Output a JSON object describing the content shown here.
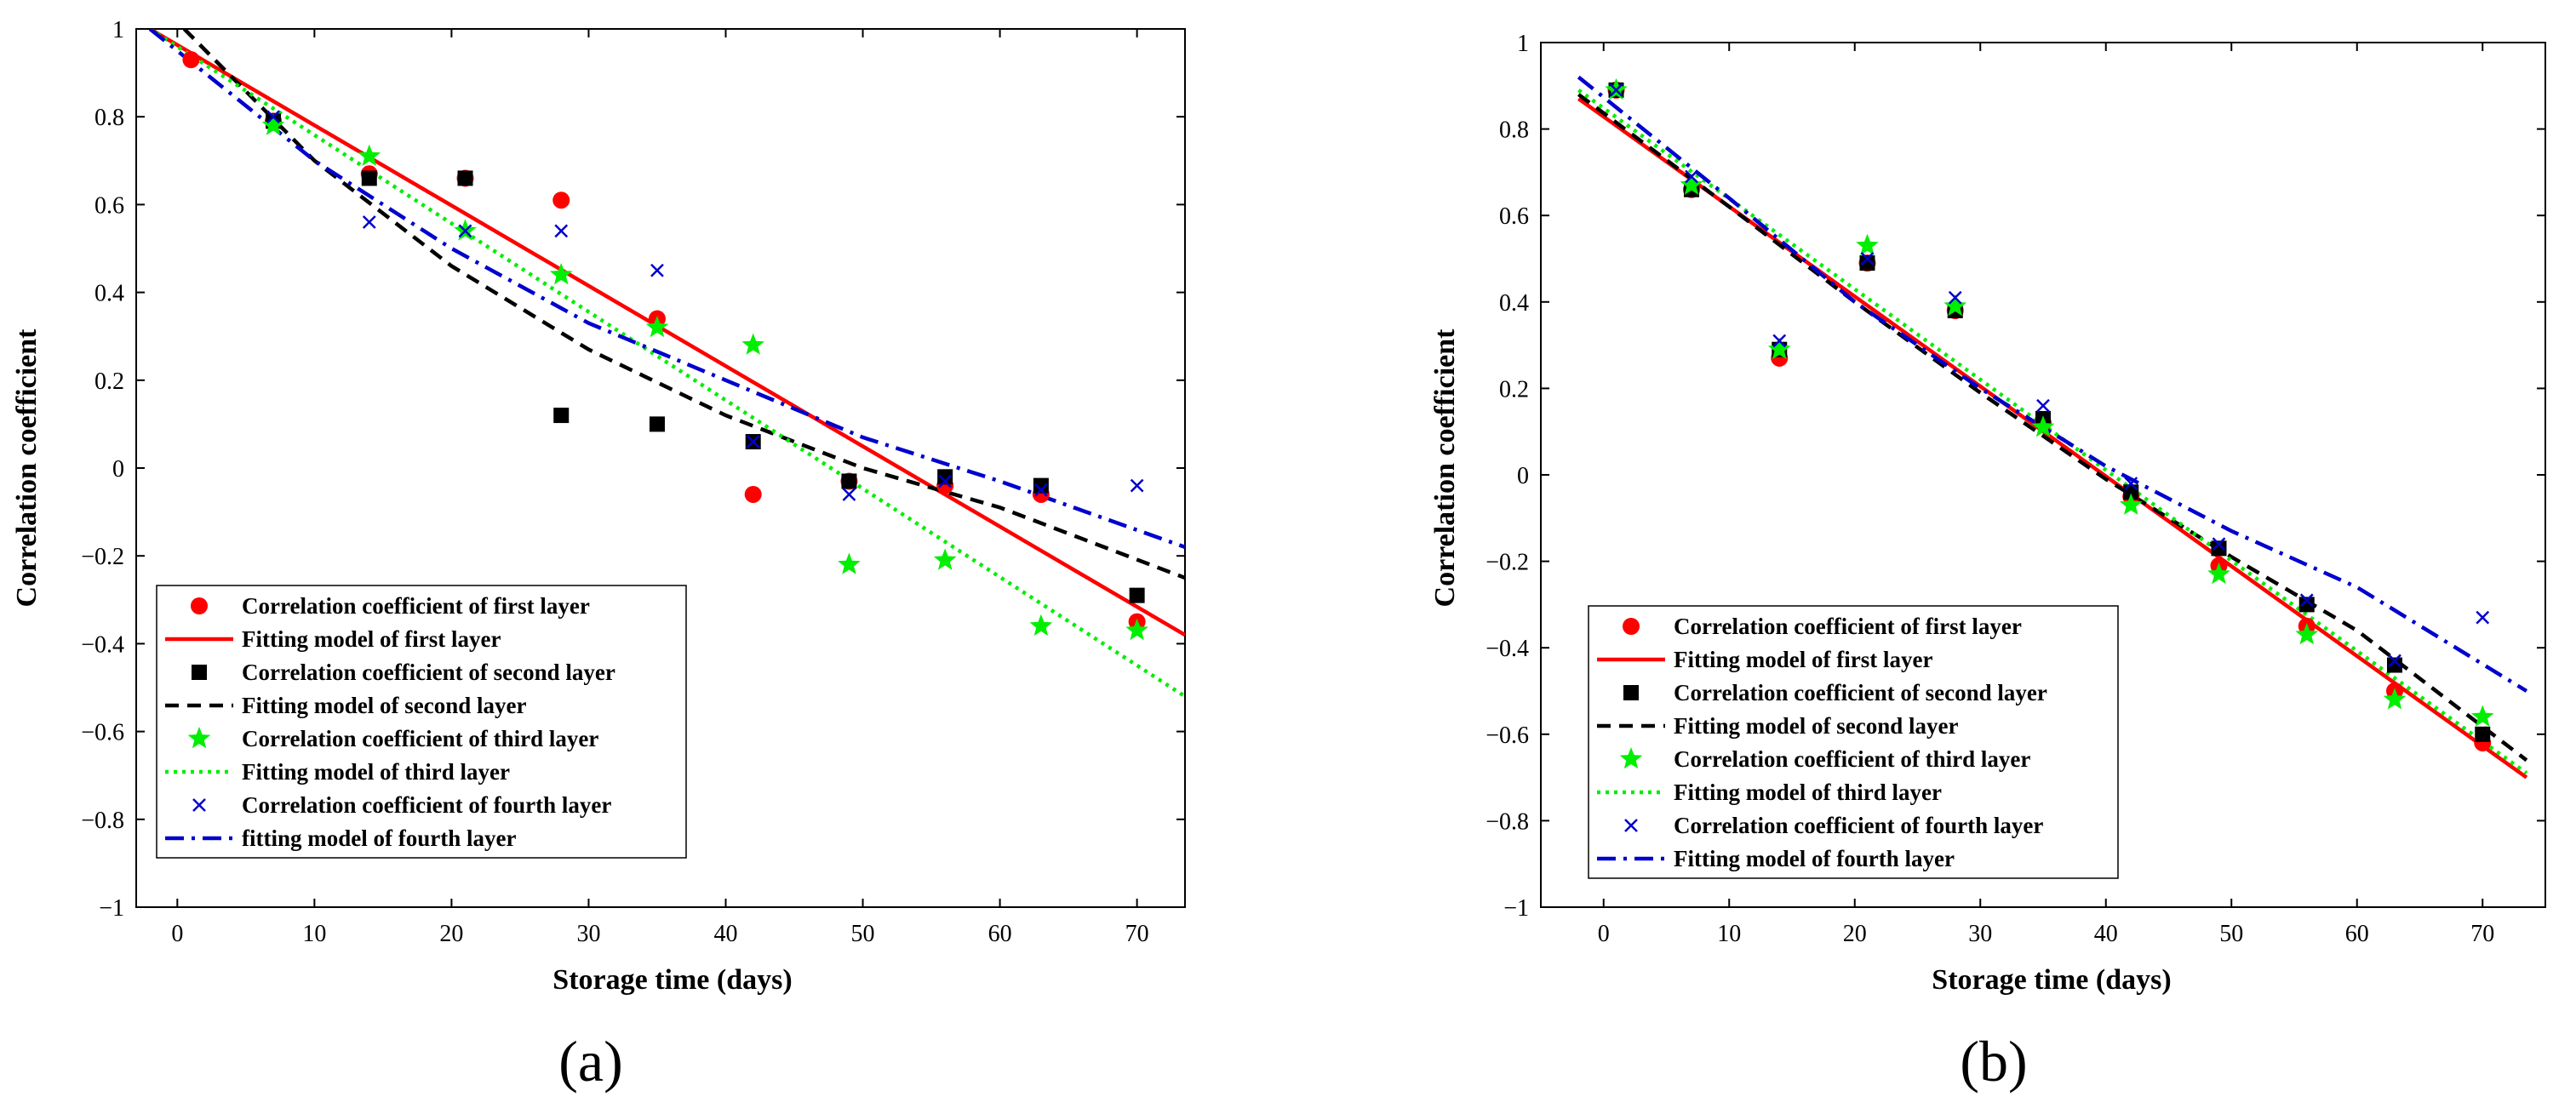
{
  "chart_data": [
    {
      "type": "scatter",
      "panel_label": "(a)",
      "xlabel": "Storage time (days)",
      "ylabel": "Correlation coefficient",
      "xlim": [
        -3,
        73.5
      ],
      "ylim": [
        -1,
        1
      ],
      "xticks": [
        "0",
        "10",
        "20",
        "30",
        "40",
        "50",
        "60",
        "70"
      ],
      "yticks": [
        "1",
        "0.8",
        "0.6",
        "0.4",
        "0.2",
        "0",
        "−0.2",
        "−0.4",
        "−0.6",
        "−0.8",
        "−1"
      ],
      "legend_position": "bottom-left",
      "series": [
        {
          "name": "Correlation coefficient of first layer",
          "marker": "circle",
          "color": "#ff0000",
          "x": [
            1,
            7,
            14,
            21,
            28,
            35,
            42,
            49,
            56,
            63,
            70
          ],
          "y": [
            0.93,
            0.79,
            0.67,
            0.66,
            0.61,
            0.34,
            -0.06,
            -0.03,
            -0.04,
            -0.06,
            -0.35
          ]
        },
        {
          "name": "Fitting model of first layer",
          "line": "solid",
          "color": "#ff0000",
          "x": [
            -2,
            73.5
          ],
          "y": [
            1.0,
            -0.38
          ]
        },
        {
          "name": "Correlation coefficient of second layer",
          "marker": "square",
          "color": "#000000",
          "x": [
            7,
            14,
            21,
            28,
            35,
            42,
            49,
            56,
            63,
            70
          ],
          "y": [
            0.79,
            0.66,
            0.66,
            0.12,
            0.1,
            0.06,
            -0.03,
            -0.02,
            -0.04,
            -0.29
          ]
        },
        {
          "name": "Fitting model of second layer",
          "line": "dashed",
          "color": "#000000",
          "x": [
            0.5,
            10,
            20,
            30,
            40,
            50,
            60,
            73.5
          ],
          "y": [
            1.0,
            0.7,
            0.46,
            0.27,
            0.12,
            0.0,
            -0.09,
            -0.25
          ]
        },
        {
          "name": "Correlation coefficient of third layer",
          "marker": "star",
          "color": "#00ee00",
          "x": [
            7,
            14,
            21,
            28,
            35,
            42,
            49,
            56,
            63,
            70
          ],
          "y": [
            0.78,
            0.71,
            0.54,
            0.44,
            0.32,
            0.28,
            -0.22,
            -0.21,
            -0.36,
            -0.37
          ]
        },
        {
          "name": "Fitting model of third layer",
          "line": "dotted",
          "color": "#00ee00",
          "x": [
            -2,
            73.5
          ],
          "y": [
            1.0,
            -0.52
          ]
        },
        {
          "name": "Correlation coefficient of fourth layer",
          "marker": "x",
          "color": "#0000cc",
          "x": [
            7,
            14,
            21,
            28,
            35,
            42,
            49,
            56,
            63,
            70
          ],
          "y": [
            0.8,
            0.56,
            0.54,
            0.54,
            0.45,
            0.06,
            -0.06,
            -0.03,
            -0.05,
            -0.04
          ]
        },
        {
          "name": "fitting model of fourth layer",
          "line": "dashdot",
          "color": "#0000cc",
          "x": [
            -2,
            10,
            20,
            30,
            40,
            50,
            60,
            73.5
          ],
          "y": [
            1.0,
            0.7,
            0.5,
            0.33,
            0.2,
            0.07,
            -0.03,
            -0.18
          ]
        }
      ]
    },
    {
      "type": "scatter",
      "panel_label": "(b)",
      "xlabel": "Storage time (days)",
      "ylabel": "Correlation coefficient",
      "xlim": [
        -5,
        75
      ],
      "ylim": [
        -1,
        1
      ],
      "xticks": [
        "0",
        "10",
        "20",
        "30",
        "40",
        "50",
        "60",
        "70"
      ],
      "yticks": [
        "1",
        "0.8",
        "0.6",
        "0.4",
        "0.2",
        "0",
        "−0.2",
        "−0.4",
        "−0.6",
        "−0.8",
        "−1"
      ],
      "legend_position": "bottom-left",
      "series": [
        {
          "name": "Correlation coefficient of first layer",
          "marker": "circle",
          "color": "#ff0000",
          "x": [
            1,
            7,
            14,
            21,
            28,
            35,
            42,
            49,
            56,
            63,
            70
          ],
          "y": [
            0.89,
            0.66,
            0.27,
            0.49,
            0.38,
            0.12,
            -0.05,
            -0.21,
            -0.35,
            -0.5,
            -0.62
          ]
        },
        {
          "name": "Fitting model of first layer",
          "line": "solid",
          "color": "#ff0000",
          "x": [
            -2,
            73.5
          ],
          "y": [
            0.87,
            -0.7
          ]
        },
        {
          "name": "Correlation coefficient of second layer",
          "marker": "square",
          "color": "#000000",
          "x": [
            1,
            7,
            14,
            21,
            28,
            35,
            42,
            49,
            56,
            63,
            70
          ],
          "y": [
            0.89,
            0.66,
            0.29,
            0.49,
            0.38,
            0.13,
            -0.04,
            -0.17,
            -0.3,
            -0.44,
            -0.6
          ]
        },
        {
          "name": "Fitting model of second layer",
          "line": "dashed",
          "color": "#000000",
          "x": [
            -2,
            10,
            20,
            30,
            40,
            50,
            60,
            73.5
          ],
          "y": [
            0.88,
            0.62,
            0.4,
            0.19,
            -0.01,
            -0.19,
            -0.36,
            -0.66
          ]
        },
        {
          "name": "Correlation coefficient of third layer",
          "marker": "star",
          "color": "#00ee00",
          "x": [
            1,
            7,
            14,
            21,
            28,
            35,
            42,
            49,
            56,
            63,
            70
          ],
          "y": [
            0.89,
            0.67,
            0.29,
            0.53,
            0.39,
            0.11,
            -0.07,
            -0.23,
            -0.37,
            -0.52,
            -0.56
          ]
        },
        {
          "name": "Fitting model of third layer",
          "line": "dotted",
          "color": "#00ee00",
          "x": [
            -2,
            73.5
          ],
          "y": [
            0.89,
            -0.69
          ]
        },
        {
          "name": "Correlation coefficient of fourth layer",
          "marker": "x",
          "color": "#0000cc",
          "x": [
            1,
            7,
            14,
            21,
            28,
            35,
            42,
            49,
            56,
            63,
            70
          ],
          "y": [
            0.89,
            0.69,
            0.31,
            0.5,
            0.41,
            0.16,
            -0.02,
            -0.16,
            -0.29,
            -0.43,
            -0.33
          ]
        },
        {
          "name": "Fitting model of fourth layer",
          "line": "dashdot",
          "color": "#0000cc",
          "x": [
            -2,
            10,
            20,
            30,
            40,
            50,
            60,
            73.5
          ],
          "y": [
            0.92,
            0.64,
            0.4,
            0.2,
            0.02,
            -0.13,
            -0.26,
            -0.5
          ]
        }
      ]
    }
  ]
}
